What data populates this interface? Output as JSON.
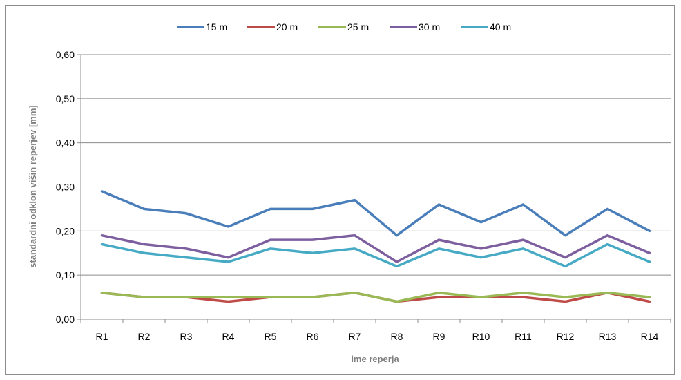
{
  "chart_data": {
    "type": "line",
    "categories": [
      "R1",
      "R2",
      "R3",
      "R4",
      "R5",
      "R6",
      "R7",
      "R8",
      "R9",
      "R10",
      "R11",
      "R12",
      "R13",
      "R14"
    ],
    "series": [
      {
        "name": "15 m",
        "color": "#4a7ebb",
        "values": [
          0.29,
          0.25,
          0.24,
          0.21,
          0.25,
          0.25,
          0.27,
          0.19,
          0.26,
          0.22,
          0.26,
          0.19,
          0.25,
          0.2
        ]
      },
      {
        "name": "20 m",
        "color": "#be4b48",
        "values": [
          0.06,
          0.05,
          0.05,
          0.04,
          0.05,
          0.05,
          0.06,
          0.04,
          0.05,
          0.05,
          0.05,
          0.04,
          0.06,
          0.04
        ]
      },
      {
        "name": "25 m",
        "color": "#98b954",
        "values": [
          0.06,
          0.05,
          0.05,
          0.05,
          0.05,
          0.05,
          0.06,
          0.04,
          0.06,
          0.05,
          0.06,
          0.05,
          0.06,
          0.05
        ]
      },
      {
        "name": "30 m",
        "color": "#7d5fa0",
        "values": [
          0.19,
          0.17,
          0.16,
          0.14,
          0.18,
          0.18,
          0.19,
          0.13,
          0.18,
          0.16,
          0.18,
          0.14,
          0.19,
          0.15
        ]
      },
      {
        "name": "40 m",
        "color": "#46aac5",
        "values": [
          0.17,
          0.15,
          0.14,
          0.13,
          0.16,
          0.15,
          0.16,
          0.12,
          0.16,
          0.14,
          0.16,
          0.12,
          0.17,
          0.13
        ]
      }
    ],
    "xlabel": "ime reperja",
    "ylabel": "standardni odklon višin reperjev [mm]",
    "ylim": [
      0,
      0.6
    ],
    "yticks": [
      "0,00",
      "0,10",
      "0,20",
      "0,30",
      "0,40",
      "0,50",
      "0,60"
    ],
    "grid": true,
    "legend": "top"
  }
}
